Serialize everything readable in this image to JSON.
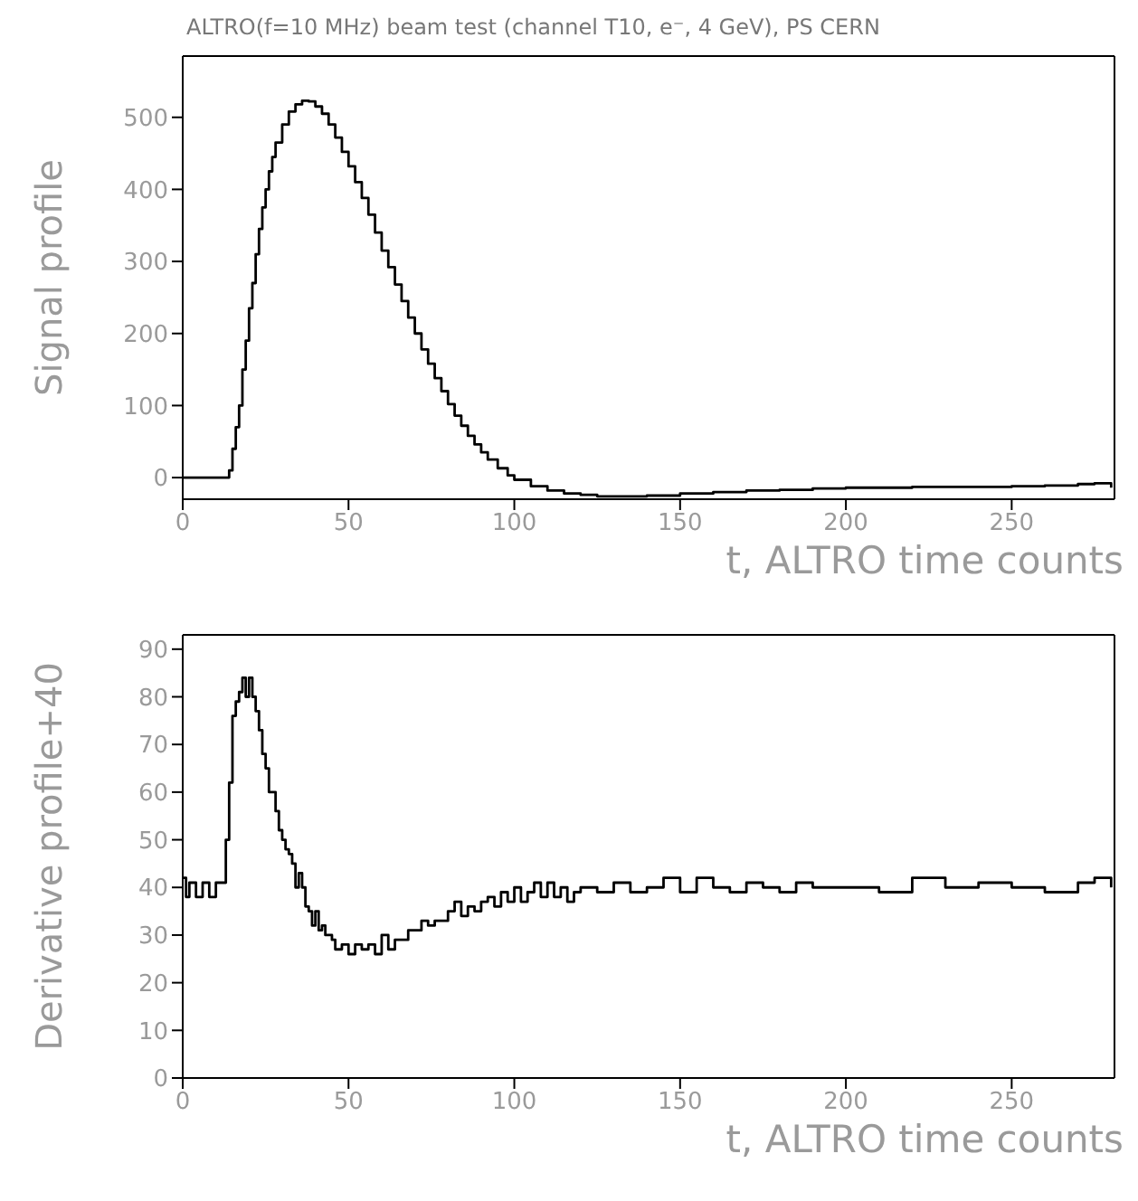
{
  "chart_data": [
    {
      "type": "step",
      "title": "ALTRO(f=10 MHz) beam test (channel T10, e⁻, 4 GeV), PS CERN",
      "xlabel": "t, ALTRO time counts",
      "ylabel": "Signal profile",
      "color": "#000000",
      "x": [
        0,
        5,
        10,
        13,
        14,
        15,
        16,
        17,
        18,
        19,
        20,
        21,
        22,
        23,
        24,
        25,
        26,
        27,
        28,
        30,
        32,
        34,
        36,
        38,
        40,
        42,
        44,
        46,
        48,
        50,
        52,
        54,
        56,
        58,
        60,
        62,
        64,
        66,
        68,
        70,
        72,
        74,
        76,
        78,
        80,
        82,
        84,
        86,
        88,
        90,
        92,
        95,
        98,
        100,
        105,
        110,
        115,
        120,
        125,
        130,
        140,
        150,
        160,
        170,
        180,
        190,
        200,
        210,
        220,
        230,
        240,
        250,
        260,
        270,
        275,
        280
      ],
      "values": [
        0,
        0,
        0,
        0,
        10,
        40,
        70,
        100,
        150,
        190,
        235,
        270,
        310,
        345,
        375,
        400,
        425,
        445,
        465,
        490,
        508,
        518,
        523,
        522,
        515,
        505,
        490,
        472,
        452,
        432,
        410,
        388,
        365,
        340,
        315,
        292,
        268,
        245,
        222,
        200,
        178,
        158,
        138,
        120,
        102,
        86,
        72,
        58,
        46,
        35,
        25,
        13,
        3,
        -3,
        -12,
        -18,
        -22,
        -24,
        -26,
        -26,
        -25,
        -22,
        -20,
        -18,
        -17,
        -15,
        -14,
        -14,
        -13,
        -13,
        -13,
        -12,
        -11,
        -9,
        -8,
        -14
      ],
      "xlim": [
        0,
        281
      ],
      "ylim": [
        -30,
        585
      ],
      "xticks": [
        0,
        50,
        100,
        150,
        200,
        250
      ],
      "yticks": [
        0,
        100,
        200,
        300,
        400,
        500
      ]
    },
    {
      "type": "step",
      "xlabel": "t, ALTRO time counts",
      "ylabel": "Derivative profile+40",
      "color": "#000000",
      "x": [
        0,
        1,
        2,
        4,
        6,
        8,
        10,
        12,
        13,
        14,
        15,
        16,
        17,
        18,
        19,
        20,
        21,
        22,
        23,
        24,
        25,
        26,
        27,
        28,
        29,
        30,
        31,
        32,
        33,
        34,
        35,
        36,
        37,
        38,
        39,
        40,
        41,
        42,
        43,
        44,
        45,
        46,
        48,
        50,
        52,
        54,
        56,
        58,
        60,
        62,
        64,
        66,
        68,
        70,
        72,
        74,
        76,
        78,
        80,
        82,
        84,
        86,
        88,
        90,
        92,
        94,
        96,
        98,
        100,
        102,
        104,
        106,
        108,
        110,
        112,
        114,
        116,
        118,
        120,
        125,
        130,
        135,
        140,
        145,
        150,
        155,
        160,
        165,
        170,
        175,
        180,
        185,
        190,
        200,
        210,
        220,
        230,
        240,
        250,
        260,
        270,
        275,
        280
      ],
      "values": [
        42,
        38,
        41,
        38,
        41,
        38,
        41,
        41,
        50,
        62,
        76,
        79,
        81,
        84,
        80,
        84,
        80,
        77,
        73,
        68,
        65,
        60,
        60,
        56,
        52,
        50,
        48,
        47,
        45,
        40,
        43,
        40,
        36,
        35,
        32,
        35,
        31,
        32,
        30,
        30,
        29,
        27,
        28,
        26,
        28,
        27,
        28,
        26,
        30,
        27,
        29,
        29,
        31,
        31,
        33,
        32,
        33,
        33,
        35,
        37,
        34,
        36,
        35,
        37,
        38,
        36,
        39,
        37,
        40,
        37,
        39,
        41,
        38,
        41,
        38,
        40,
        37,
        39,
        40,
        39,
        41,
        39,
        40,
        42,
        39,
        42,
        40,
        39,
        41,
        40,
        39,
        41,
        40,
        40,
        39,
        42,
        40,
        41,
        40,
        39,
        41,
        42,
        40
      ],
      "xlim": [
        0,
        281
      ],
      "ylim": [
        0,
        93
      ],
      "xticks": [
        0,
        50,
        100,
        150,
        200,
        250
      ],
      "yticks": [
        0,
        10,
        20,
        30,
        40,
        50,
        60,
        70,
        80,
        90
      ]
    }
  ]
}
